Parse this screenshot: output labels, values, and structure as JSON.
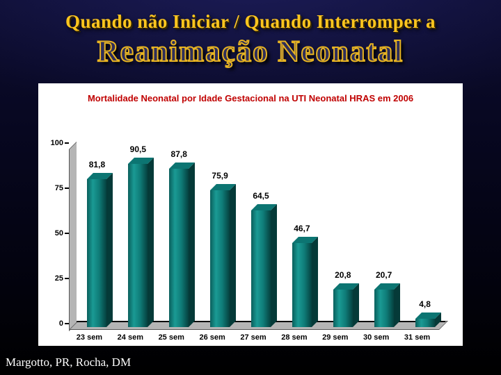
{
  "slide": {
    "title_line1": "Quando não Iniciar / Quando Interromper a",
    "title_line2": "Reanimação Neonatal",
    "footer": "Margotto, PR, Rocha, DM",
    "title_color": "#ffc61e",
    "background_color": "#05051a"
  },
  "chart_data": {
    "type": "bar",
    "title": "Mortalidade Neonatal por Idade Gestacional na UTI Neonatal HRAS em 2006",
    "title_color": "#c00000",
    "categories": [
      "23 sem",
      "24 sem",
      "25 sem",
      "26 sem",
      "27 sem",
      "28 sem",
      "29 sem",
      "30 sem",
      "31 sem"
    ],
    "values": [
      81.8,
      90.5,
      87.8,
      75.9,
      64.5,
      46.7,
      20.8,
      20.7,
      4.8
    ],
    "value_labels": [
      "81,8",
      "90,5",
      "87,8",
      "75,9",
      "64,5",
      "46,7",
      "20,8",
      "20,7",
      "4,8"
    ],
    "xlabel": "",
    "ylabel": "",
    "ylim": [
      0,
      100
    ],
    "yticks": [
      0,
      25,
      50,
      75,
      100
    ],
    "grid": false,
    "legend": null,
    "bar_color": "#0f7c78",
    "bar_side_color": "#053a38",
    "wall_color": "#b5b5b5"
  }
}
